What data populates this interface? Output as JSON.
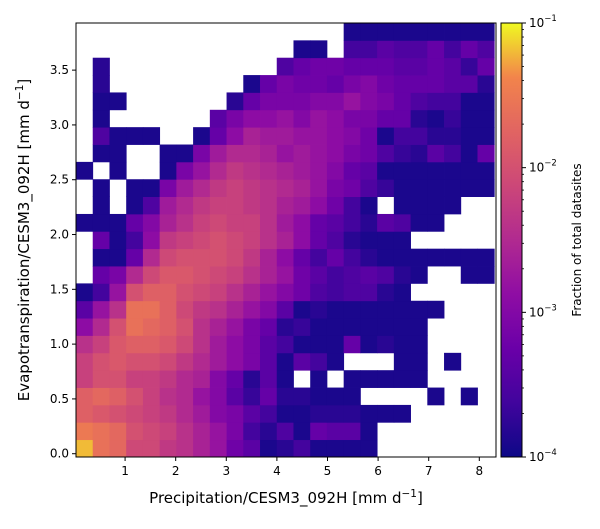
{
  "chart_data": {
    "type": "heatmap",
    "title": "",
    "xlabel": "Precipitation/CESM3_092H [mm d",
    "xlabel_sup": "−1",
    "xlabel_end": "]",
    "ylabel": "Evapotranspiration/CESM3_092H [mm d",
    "ylabel_sup": "−1",
    "ylabel_end": "]",
    "xlim": [
      0.03,
      8.33
    ],
    "ylim": [
      -0.03,
      3.93
    ],
    "x_ticks": [
      1,
      2,
      3,
      4,
      5,
      6,
      7,
      8
    ],
    "x_tick_labels": [
      "1",
      "2",
      "3",
      "4",
      "5",
      "6",
      "7",
      "8"
    ],
    "y_ticks": [
      0.0,
      0.5,
      1.0,
      1.5,
      2.0,
      2.5,
      3.0,
      3.5
    ],
    "y_tick_labels": [
      "0.0",
      "0.5",
      "1.0",
      "1.5",
      "2.0",
      "2.5",
      "3.0",
      "3.5"
    ],
    "bins": {
      "x_start": 0.03,
      "x_width": 0.3306,
      "x_count": 25,
      "y_start": -0.03,
      "y_width": 0.1584,
      "y_count": 25
    },
    "value_encoding": "log10(fraction of total datasets); null = empty bin",
    "grid": false,
    "colormap": "plasma",
    "colorbar": {
      "label": "Fraction of total datasites",
      "scale": "log",
      "range": [
        0.0001,
        0.1
      ],
      "tick_values": [
        0.0001,
        0.001,
        0.01,
        0.1
      ],
      "tick_bases": [
        "10",
        "10",
        "10",
        "10"
      ],
      "tick_exponents": [
        "−4",
        "−3",
        "−2",
        "−1"
      ],
      "position": "right"
    },
    "values": [
      [
        -1.2,
        -1.6,
        -1.7,
        -2.1,
        -2.1,
        -2.3,
        -2.4,
        -2.6,
        -2.8,
        -3.2,
        -3.4,
        -3.9,
        -3.8,
        -3.6,
        -3.9,
        -3.9,
        -3.9,
        -3.9,
        null,
        null,
        null,
        null,
        null,
        null,
        null
      ],
      [
        -1.5,
        -1.6,
        -1.7,
        -2.0,
        -2.1,
        -2.2,
        -2.4,
        -2.6,
        -2.8,
        -3.1,
        -3.6,
        -3.8,
        -3.5,
        -3.9,
        -3.3,
        -3.4,
        -3.4,
        -3.9,
        null,
        null,
        null,
        null,
        null,
        null,
        null
      ],
      [
        -1.8,
        -1.9,
        -2.0,
        -2.1,
        -2.2,
        -2.3,
        -2.5,
        -2.7,
        -3.0,
        -3.1,
        -3.4,
        -3.6,
        -3.9,
        -3.9,
        -3.8,
        -3.8,
        -3.8,
        -3.9,
        -3.9,
        -3.9,
        null,
        null,
        null,
        null,
        null
      ],
      [
        -1.8,
        -1.7,
        -1.8,
        -2.0,
        -2.2,
        -2.4,
        -2.5,
        -2.8,
        -3.0,
        -3.4,
        -3.7,
        -3.3,
        -3.8,
        -3.8,
        -3.9,
        -3.9,
        -3.9,
        null,
        null,
        null,
        null,
        -3.9,
        null,
        -3.9,
        null
      ],
      [
        -2.2,
        -2.0,
        -2.0,
        -2.2,
        -2.2,
        -2.3,
        -2.5,
        -2.6,
        -3.0,
        -3.3,
        -3.8,
        -3.4,
        -3.9,
        null,
        -3.9,
        null,
        -3.9,
        -3.9,
        -3.9,
        -3.9,
        -3.9,
        null,
        null,
        null,
        null
      ],
      [
        -2.2,
        -2.0,
        -1.9,
        -2.0,
        -2.0,
        -2.1,
        -2.3,
        -2.5,
        -2.7,
        -2.9,
        -3.1,
        -3.4,
        -3.9,
        -3.4,
        -3.6,
        -3.9,
        null,
        null,
        null,
        -3.9,
        -3.9,
        null,
        -3.9,
        null,
        null
      ],
      [
        -2.4,
        -2.2,
        -1.9,
        -1.8,
        -1.8,
        -1.9,
        -2.1,
        -2.4,
        -2.7,
        -2.9,
        -3.1,
        -3.4,
        -3.6,
        -3.9,
        -3.9,
        -3.9,
        -3.3,
        -3.9,
        -3.8,
        -3.9,
        -3.9,
        null,
        null,
        null,
        null
      ],
      [
        -2.9,
        -2.5,
        -2.0,
        -1.6,
        -1.7,
        -1.8,
        -2.0,
        -2.4,
        -2.6,
        -2.8,
        -3.1,
        -3.3,
        -3.8,
        -3.7,
        -3.9,
        -3.9,
        -3.9,
        -3.9,
        -3.9,
        -3.9,
        -3.9,
        null,
        null,
        null,
        null
      ],
      [
        -3.4,
        -2.8,
        -2.4,
        -1.6,
        -1.6,
        -1.8,
        -2.1,
        -2.3,
        -2.4,
        -2.6,
        -2.8,
        -3.0,
        -3.4,
        -3.9,
        -3.8,
        -3.9,
        -3.9,
        -3.9,
        -3.9,
        -3.9,
        -3.9,
        -3.9,
        null,
        null,
        null
      ],
      [
        -3.9,
        -3.6,
        -2.8,
        -2.0,
        -1.8,
        -1.8,
        -2.0,
        -2.1,
        -2.2,
        -2.4,
        -2.6,
        -2.8,
        -3.0,
        -3.2,
        -3.5,
        -3.6,
        -3.5,
        -3.5,
        -3.8,
        -3.9,
        null,
        null,
        null,
        null,
        null
      ],
      [
        null,
        -3.3,
        -3.1,
        -2.5,
        -2.1,
        -1.9,
        -1.9,
        -2.0,
        -2.1,
        -2.2,
        -2.4,
        -2.6,
        -2.8,
        -3.2,
        -3.4,
        -3.6,
        -3.5,
        -3.4,
        -3.5,
        -3.8,
        -3.9,
        null,
        null,
        -3.9,
        -3.9
      ],
      [
        null,
        -3.9,
        -3.9,
        -3.3,
        -2.5,
        -2.1,
        -2.0,
        -2.0,
        -2.0,
        -2.1,
        -2.3,
        -2.6,
        -2.9,
        -3.3,
        -3.6,
        -3.3,
        -3.6,
        -3.8,
        -3.9,
        -3.9,
        -3.9,
        -3.9,
        -3.9,
        -3.9,
        -3.9
      ],
      [
        null,
        -3.3,
        -3.9,
        -3.6,
        -2.9,
        -2.3,
        -2.2,
        -2.1,
        -2.0,
        -2.1,
        -2.2,
        -2.4,
        -2.6,
        -2.9,
        -3.3,
        -3.5,
        -3.8,
        -3.9,
        -3.9,
        -3.9,
        null,
        null,
        null,
        null,
        null
      ],
      [
        -3.9,
        -3.9,
        -3.9,
        -3.3,
        -3.0,
        -2.6,
        -2.4,
        -2.2,
        -2.1,
        -2.2,
        -2.2,
        -2.4,
        -2.7,
        -2.9,
        -3.3,
        -3.4,
        -3.6,
        -3.8,
        -3.4,
        -3.5,
        -3.9,
        -3.9,
        null,
        null,
        null
      ],
      [
        null,
        -3.9,
        null,
        -3.9,
        -3.5,
        -2.7,
        -2.5,
        -2.3,
        -2.2,
        -2.2,
        -2.3,
        -2.4,
        -2.6,
        -2.7,
        -2.9,
        -3.2,
        -3.6,
        -3.9,
        null,
        -3.9,
        -3.9,
        -3.9,
        -3.9,
        null,
        null
      ],
      [
        null,
        -3.9,
        null,
        -3.9,
        -3.9,
        -3.1,
        -2.7,
        -2.5,
        -2.3,
        -2.2,
        -2.3,
        -2.4,
        -2.5,
        -2.6,
        -2.8,
        -3.1,
        -3.2,
        -3.5,
        -3.7,
        -3.9,
        -3.9,
        -3.9,
        -3.9,
        -3.9,
        -3.9
      ],
      [
        -3.9,
        null,
        -3.9,
        null,
        null,
        -3.9,
        -3.1,
        -2.8,
        -2.5,
        -2.3,
        -2.4,
        -2.5,
        -2.6,
        -2.7,
        -2.8,
        -3.0,
        -3.3,
        -3.4,
        -3.9,
        -3.9,
        -3.9,
        -3.9,
        -3.9,
        -3.9,
        -3.9
      ],
      [
        null,
        -3.9,
        -3.9,
        null,
        null,
        -3.9,
        -3.9,
        -3.1,
        -2.7,
        -2.5,
        -2.5,
        -2.6,
        -2.8,
        -2.7,
        -2.8,
        -2.9,
        -3.1,
        -3.2,
        -3.5,
        -3.7,
        -3.8,
        -3.4,
        -3.6,
        -3.9,
        -3.3
      ],
      [
        null,
        -3.5,
        -3.9,
        -3.9,
        -3.9,
        null,
        null,
        -3.9,
        -3.3,
        -2.9,
        -2.6,
        -2.7,
        -2.7,
        -2.8,
        -2.8,
        -2.9,
        -3.0,
        -3.2,
        -3.9,
        -3.6,
        -3.6,
        -3.8,
        -3.8,
        -3.9,
        -3.9
      ],
      [
        null,
        -3.9,
        null,
        null,
        null,
        null,
        null,
        null,
        -3.4,
        -3.1,
        -2.9,
        -2.9,
        -2.8,
        -3.0,
        -2.8,
        -2.9,
        -3.1,
        -3.1,
        -3.3,
        -3.3,
        -3.8,
        -3.9,
        -3.7,
        -3.9,
        -3.9
      ],
      [
        null,
        -3.9,
        -3.9,
        null,
        null,
        null,
        null,
        null,
        null,
        -3.8,
        -3.3,
        -3.1,
        -3.1,
        -3.1,
        -3.0,
        -3.0,
        -2.8,
        -3.0,
        -3.1,
        -3.3,
        -3.5,
        -3.6,
        -3.6,
        -3.9,
        -3.9
      ],
      [
        null,
        -3.8,
        null,
        null,
        null,
        null,
        null,
        null,
        null,
        null,
        -3.9,
        -3.3,
        -3.1,
        -3.2,
        -3.2,
        -3.3,
        -3.1,
        -3.0,
        -3.2,
        -3.3,
        -3.3,
        -3.3,
        -3.4,
        -3.4,
        -3.8
      ],
      [
        null,
        -3.8,
        null,
        null,
        null,
        null,
        null,
        null,
        null,
        null,
        null,
        null,
        -3.5,
        -3.3,
        -3.2,
        -3.2,
        -3.3,
        -3.3,
        -3.3,
        -3.4,
        -3.4,
        -3.3,
        -3.4,
        -3.7,
        -3.3
      ],
      [
        null,
        null,
        null,
        null,
        null,
        null,
        null,
        null,
        null,
        null,
        null,
        null,
        null,
        -3.9,
        -3.9,
        null,
        -3.6,
        -3.6,
        -3.4,
        -3.5,
        -3.5,
        -3.3,
        -3.6,
        -3.3,
        -3.5
      ],
      [
        null,
        null,
        null,
        null,
        null,
        null,
        null,
        null,
        null,
        null,
        null,
        null,
        null,
        null,
        null,
        null,
        -3.9,
        -3.9,
        -3.9,
        -3.9,
        -3.9,
        -3.9,
        -3.9,
        -3.9,
        -3.9
      ]
    ]
  }
}
